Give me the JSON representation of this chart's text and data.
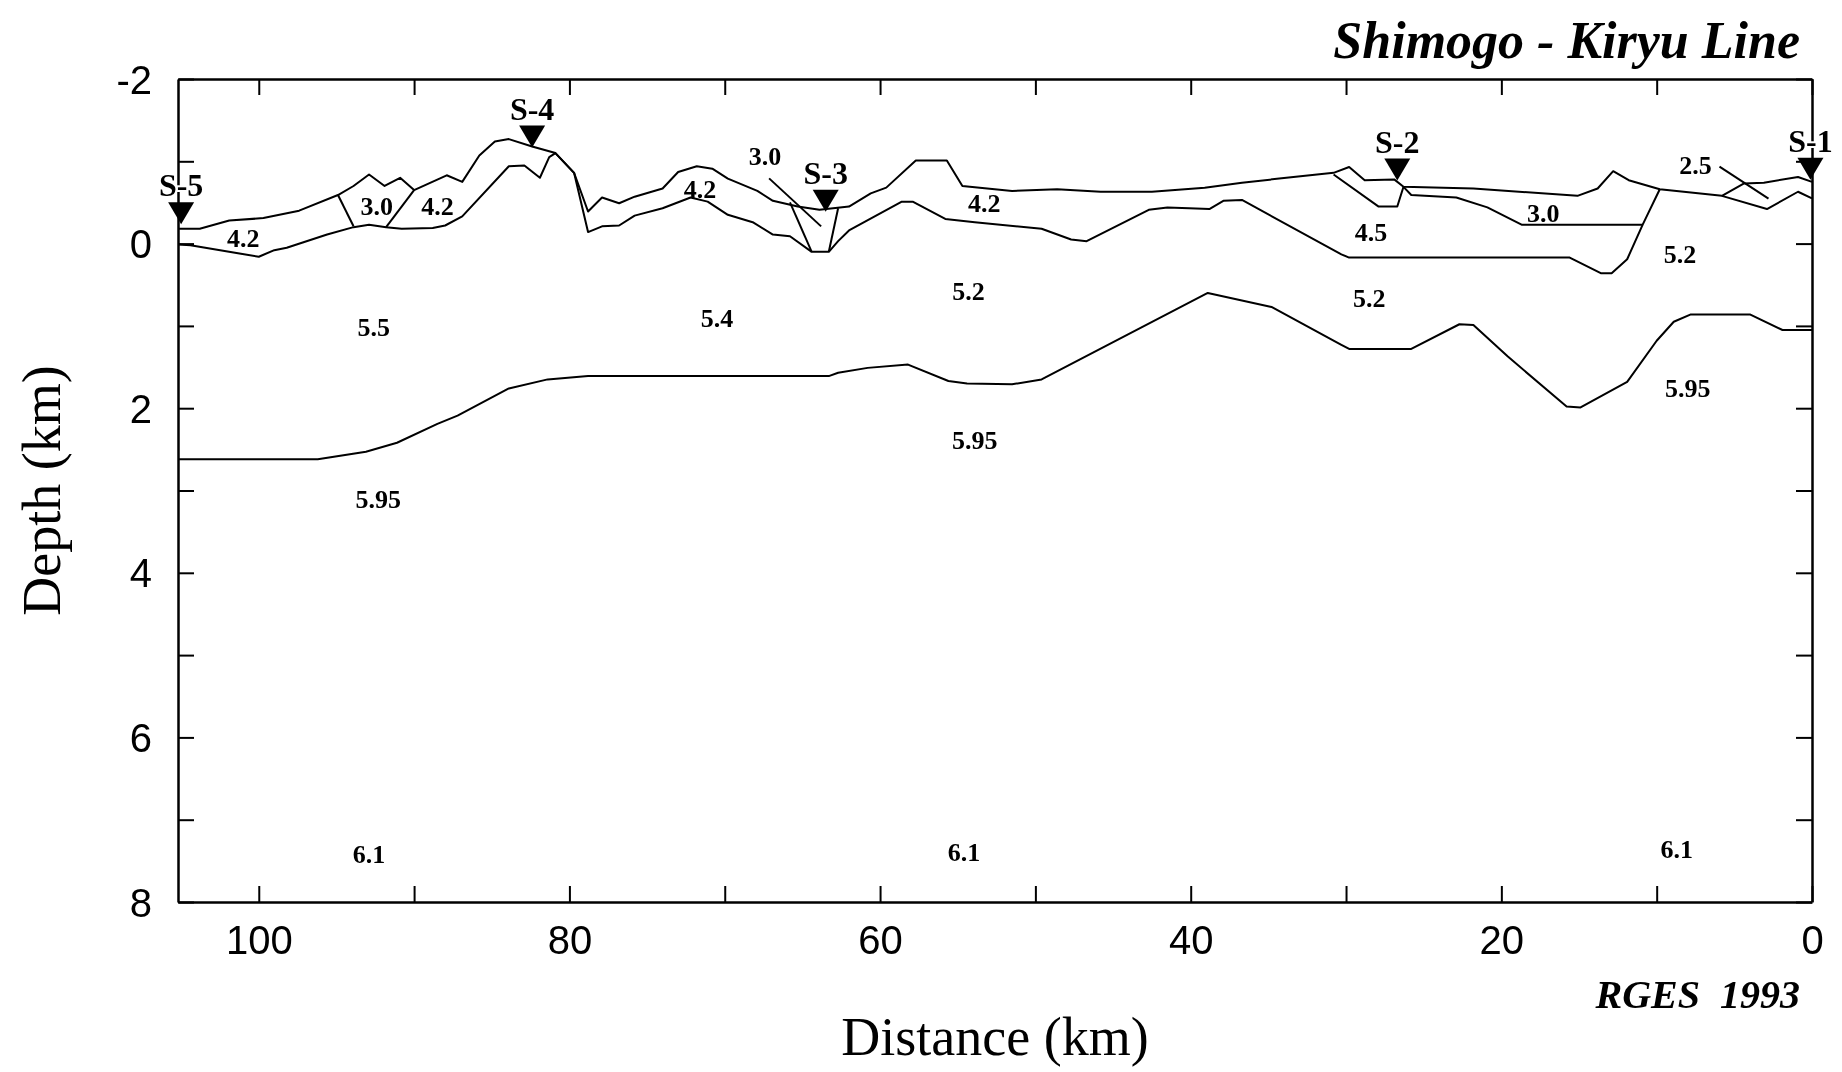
{
  "chart_data": {
    "type": "line",
    "title": "Shimogo - Kiryu Line",
    "xlabel": "Distance (km)",
    "ylabel": "Depth (km)",
    "xlim": [
      105.2,
      0
    ],
    "ylim": [
      8,
      -2
    ],
    "xticks": [
      100,
      {
        "value": 90,
        "label": null
      },
      80,
      {
        "value": 70,
        "label": null
      },
      60,
      {
        "value": 50,
        "label": null
      },
      40,
      {
        "value": 30,
        "label": null
      },
      20,
      {
        "value": 10,
        "label": null
      },
      0
    ],
    "yticks": [
      -2,
      {
        "value": -1,
        "label": null
      },
      0,
      {
        "value": 1,
        "label": null
      },
      2,
      {
        "value": 3,
        "label": null
      },
      4,
      {
        "value": 5,
        "label": null
      },
      6,
      {
        "value": 7,
        "label": null
      },
      8
    ],
    "grid": false,
    "legend": "top",
    "line_style": "solid",
    "series": [
      {
        "color": "#000000",
        "x": [
          105.2,
          103.8,
          101.9,
          99.7,
          97.4,
          94.9,
          93.9,
          92.9,
          91.9,
          90.9,
          90.0,
          87.9,
          86.9,
          85.8,
          84.8,
          83.9,
          82.4,
          80.9,
          79.7,
          78.8,
          77.9,
          76.8,
          75.8,
          74.0,
          73.0,
          71.8,
          70.8,
          69.8,
          67.9,
          66.9,
          65.3,
          63.9,
          62.0,
          60.6,
          59.6,
          57.7,
          55.7,
          54.7,
          51.5,
          48.6,
          45.8,
          42.5,
          39.1,
          36.7,
          34.3,
          30.8,
          29.8,
          28.8,
          26.9,
          26.3,
          21.8,
          15.1,
          13.8,
          12.8,
          11.8,
          9.8,
          5.8,
          4.4,
          3.1,
          0.9,
          0
        ],
        "values": [
          -0.18,
          -0.18,
          -0.28,
          -0.31,
          -0.4,
          -0.59,
          -0.7,
          -0.84,
          -0.7,
          -0.8,
          -0.65,
          -0.83,
          -0.75,
          -1.07,
          -1.24,
          -1.27,
          -1.18,
          -1.1,
          -0.86,
          -0.39,
          -0.56,
          -0.49,
          -0.57,
          -0.67,
          -0.87,
          -0.94,
          -0.91,
          -0.79,
          -0.64,
          -0.52,
          -0.45,
          -0.41,
          -0.45,
          -0.61,
          -0.68,
          -1.01,
          -1.01,
          -0.7,
          -0.64,
          -0.66,
          -0.63,
          -0.63,
          -0.68,
          -0.74,
          -0.79,
          -0.86,
          -0.93,
          -0.77,
          -0.78,
          -0.69,
          -0.67,
          -0.58,
          -0.67,
          -0.88,
          -0.77,
          -0.66,
          -0.58,
          -0.73,
          -0.74,
          -0.81,
          -0.75
        ]
      },
      {
        "color": "#000000",
        "x": [
          105.2,
          104.4,
          100,
          99.0,
          98.2,
          95.6,
          93.9,
          92.9,
          91.8,
          90.8,
          88.8,
          88.0,
          86.9,
          83.9,
          82.9,
          81.9,
          81.3,
          80.9,
          79.7,
          78.8,
          77.9,
          76.8,
          75.8,
          74.0,
          72.2,
          71.1,
          69.8,
          68.2,
          66.9,
          65.8,
          64.4,
          63.3,
          62.7,
          62.0,
          58.6,
          57.9,
          55.8,
          53.9,
          49.6,
          47.7,
          46.7,
          42.7,
          41.5,
          40.1,
          38.8,
          37.9,
          36.7,
          30.3,
          29.8,
          15.6,
          13.6,
          12.9,
          11.9,
          10.9,
          9.8
        ],
        "values": [
          0.01,
          0.02,
          0.16,
          0.08,
          0.05,
          -0.11,
          -0.2,
          -0.23,
          -0.2,
          -0.18,
          -0.19,
          -0.22,
          -0.33,
          -0.94,
          -0.95,
          -0.8,
          -1.05,
          -1.1,
          -0.86,
          -0.14,
          -0.21,
          -0.22,
          -0.34,
          -0.43,
          -0.56,
          -0.51,
          -0.35,
          -0.26,
          -0.11,
          -0.09,
          0.1,
          0.1,
          -0.03,
          -0.16,
          -0.51,
          -0.51,
          -0.3,
          -0.26,
          -0.18,
          -0.05,
          -0.03,
          -0.41,
          -0.44,
          -0.43,
          -0.42,
          -0.52,
          -0.53,
          0.13,
          0.17,
          0.17,
          0.36,
          0.36,
          0.19,
          -0.23,
          -0.66
        ]
      },
      {
        "color": "#000000",
        "x": [
          105.2,
          96.2,
          93.1,
          91.1,
          88.5,
          87.2,
          83.9,
          81.4,
          78.8,
          66.4,
          63.3,
          62.7,
          60.8,
          58.2,
          55.6,
          54.4,
          51.5,
          49.6,
          38.9,
          34.8,
          30.3,
          29.8,
          25.8,
          22.7,
          21.8,
          19.6,
          15.8,
          14.9,
          11.9,
          10.0,
          8.9,
          7.8,
          4.0,
          1.9,
          0
        ],
        "values": [
          2.62,
          2.62,
          2.53,
          2.42,
          2.19,
          2.09,
          1.76,
          1.65,
          1.61,
          1.61,
          1.61,
          1.57,
          1.51,
          1.47,
          1.67,
          1.7,
          1.71,
          1.65,
          0.6,
          0.77,
          1.23,
          1.28,
          1.28,
          0.98,
          0.99,
          1.37,
          1.98,
          1.99,
          1.68,
          1.18,
          0.95,
          0.86,
          0.86,
          1.05,
          1.05
        ]
      },
      {
        "color": "#000000",
        "x": [
          94.9,
          93.9
        ],
        "values": [
          -0.59,
          -0.21
        ]
      },
      {
        "color": "#000000",
        "x": [
          90.0,
          91.8
        ],
        "values": [
          -0.65,
          -0.2
        ]
      },
      {
        "color": "#000000",
        "x": [
          65.8,
          64.4
        ],
        "values": [
          -0.5,
          0.1
        ]
      },
      {
        "color": "#000000",
        "x": [
          62.7,
          63.3
        ],
        "values": [
          -0.43,
          0.1
        ]
      },
      {
        "color": "#000000",
        "x": [
          30.8,
          27.9,
          26.7,
          26.3
        ],
        "values": [
          -0.84,
          -0.45,
          -0.45,
          -0.69
        ]
      },
      {
        "color": "#000000",
        "x": [
          26.3,
          25.8,
          22.9,
          20.9,
          18.7,
          10.9
        ],
        "values": [
          -0.69,
          -0.59,
          -0.56,
          -0.44,
          -0.23,
          -0.23
        ]
      },
      {
        "color": "#000000",
        "x": [
          5.8,
          2.9,
          0.9,
          0
        ],
        "values": [
          -0.58,
          -0.42,
          -0.63,
          -0.55
        ]
      },
      {
        "type": "scatter",
        "marker": "triangle",
        "name": "S-5",
        "color": "#000000",
        "x": [
          105.0
        ],
        "values": [
          -0.37
        ]
      },
      {
        "type": "scatter",
        "marker": "triangle",
        "name": "S-4",
        "color": "#000000",
        "x": [
          82.4
        ],
        "values": [
          -1.3
        ]
      },
      {
        "type": "scatter",
        "marker": "triangle",
        "name": "S-3",
        "color": "#000000",
        "x": [
          63.5
        ],
        "values": [
          -0.52
        ]
      },
      {
        "type": "scatter",
        "marker": "triangle",
        "name": "S-2",
        "color": "#000000",
        "x": [
          26.7
        ],
        "values": [
          -0.9
        ]
      },
      {
        "type": "scatter",
        "marker": "triangle",
        "name": "S-1",
        "color": "#000000",
        "x": [
          0.1
        ],
        "values": [
          -0.91
        ]
      }
    ],
    "annotations": [
      "4.2",
      "3.0",
      "4.2",
      "4.2",
      "3.0",
      "4.2",
      "4.5",
      "3.0",
      "2.5",
      "5.2",
      "5.5",
      "5.4",
      "5.2",
      "5.2",
      "5.95",
      "5.95",
      "5.95",
      "6.1",
      "6.1",
      "6.1",
      "RGES  1993"
    ]
  }
}
